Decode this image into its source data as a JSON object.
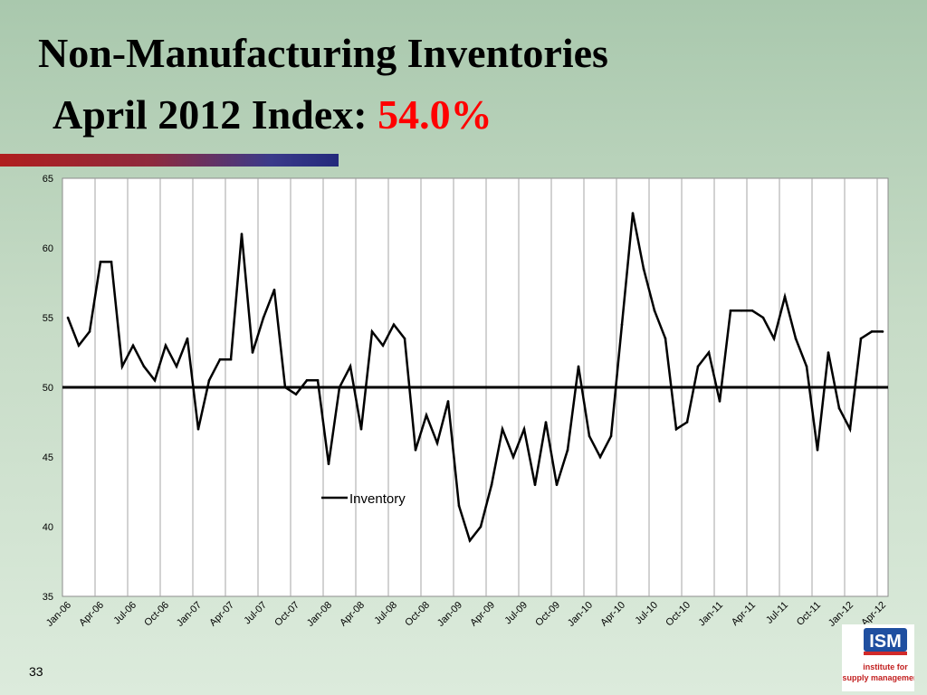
{
  "slide": {
    "title_line1": "Non-Manufacturing Inventories",
    "title_line2_prefix": "April 2012 Index: ",
    "title_line2_value": "54.0%",
    "title_value_color": "#ff0000",
    "slide_number": "33",
    "logo": {
      "name": "ISM",
      "text": "ISM",
      "caption_line1": "Institute for",
      "caption_line2": "Supply Management"
    }
  },
  "chart_data": {
    "type": "line",
    "title": "",
    "xlabel": "",
    "ylabel": "",
    "ylim": [
      35,
      65
    ],
    "yticks": [
      35,
      40,
      45,
      50,
      55,
      60,
      65
    ],
    "grid": "vertical",
    "legend_position": "center",
    "reference_line": 50,
    "x": [
      "Jan-06",
      "Feb-06",
      "Mar-06",
      "Apr-06",
      "May-06",
      "Jun-06",
      "Jul-06",
      "Aug-06",
      "Sep-06",
      "Oct-06",
      "Nov-06",
      "Dec-06",
      "Jan-07",
      "Feb-07",
      "Mar-07",
      "Apr-07",
      "May-07",
      "Jun-07",
      "Jul-07",
      "Aug-07",
      "Sep-07",
      "Oct-07",
      "Nov-07",
      "Dec-07",
      "Jan-08",
      "Feb-08",
      "Mar-08",
      "Apr-08",
      "May-08",
      "Jun-08",
      "Jul-08",
      "Aug-08",
      "Sep-08",
      "Oct-08",
      "Nov-08",
      "Dec-08",
      "Jan-09",
      "Feb-09",
      "Mar-09",
      "Apr-09",
      "May-09",
      "Jun-09",
      "Jul-09",
      "Aug-09",
      "Sep-09",
      "Oct-09",
      "Nov-09",
      "Dec-09",
      "Jan-10",
      "Feb-10",
      "Mar-10",
      "Apr-10",
      "May-10",
      "Jun-10",
      "Jul-10",
      "Aug-10",
      "Sep-10",
      "Oct-10",
      "Nov-10",
      "Dec-10",
      "Jan-11",
      "Feb-11",
      "Mar-11",
      "Apr-11",
      "May-11",
      "Jun-11",
      "Jul-11",
      "Aug-11",
      "Sep-11",
      "Oct-11",
      "Nov-11",
      "Dec-11",
      "Jan-12",
      "Feb-12",
      "Mar-12",
      "Apr-12"
    ],
    "tick_labels": [
      "Jan-06",
      "Apr-06",
      "Jul-06",
      "Oct-06",
      "Jan-07",
      "Apr-07",
      "Jul-07",
      "Oct-07",
      "Jan-08",
      "Apr-08",
      "Jul-08",
      "Oct-08",
      "Jan-09",
      "Apr-09",
      "Jul-09",
      "Oct-09",
      "Jan-10",
      "Apr-10",
      "Jul-10",
      "Oct-10",
      "Jan-11",
      "Apr-11",
      "Jul-11",
      "Oct-11",
      "Jan-12",
      "Apr-12"
    ],
    "series": [
      {
        "name": "Inventory",
        "color": "#000000",
        "values": [
          55.0,
          53.0,
          54.0,
          59.0,
          59.0,
          51.5,
          53.0,
          51.5,
          50.5,
          53.0,
          51.5,
          53.5,
          47.0,
          50.5,
          52.0,
          52.0,
          61.0,
          52.5,
          55.0,
          57.0,
          50.0,
          49.5,
          50.5,
          50.5,
          44.5,
          50.0,
          51.5,
          47.0,
          54.0,
          53.0,
          54.5,
          53.5,
          45.5,
          48.0,
          46.0,
          49.0,
          41.5,
          39.0,
          40.0,
          43.0,
          47.0,
          45.0,
          47.0,
          43.0,
          47.5,
          43.0,
          45.5,
          51.5,
          46.5,
          45.0,
          46.5,
          54.5,
          62.5,
          58.5,
          55.5,
          53.5,
          47.0,
          47.5,
          51.5,
          52.5,
          49.0,
          55.5,
          55.5,
          55.5,
          55.0,
          53.5,
          56.5,
          53.5,
          51.5,
          45.5,
          52.5,
          48.5,
          47.0,
          53.5,
          54.0,
          54.0
        ]
      }
    ]
  }
}
